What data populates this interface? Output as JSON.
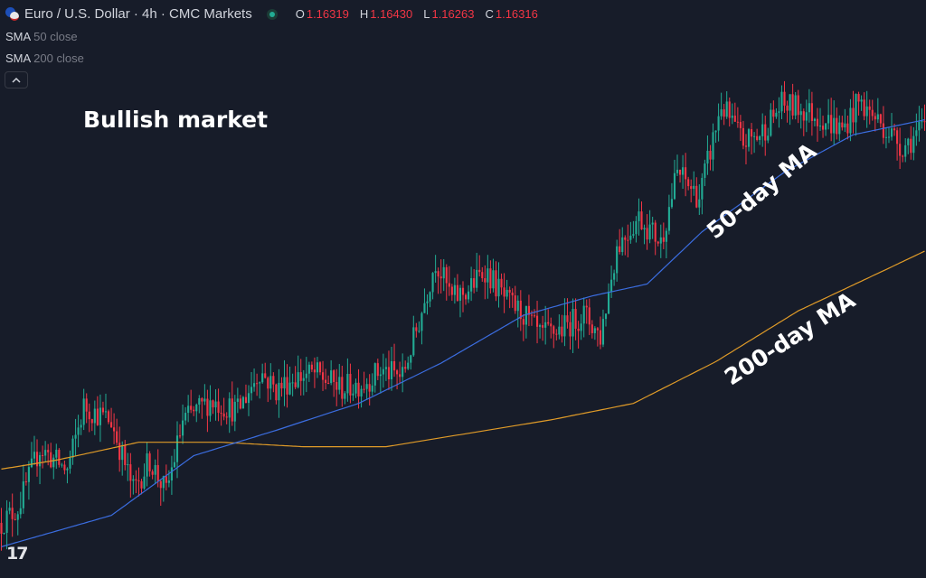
{
  "header": {
    "symbol_title": "Euro / U.S. Dollar · 4h · CMC Markets",
    "ohlc": [
      {
        "key": "O",
        "value": "1.16319"
      },
      {
        "key": "H",
        "value": "1.16430"
      },
      {
        "key": "L",
        "value": "1.16263"
      },
      {
        "key": "C",
        "value": "1.16316"
      }
    ]
  },
  "indicators": [
    {
      "name": "SMA",
      "params": "50 close",
      "color": "#3b6de0"
    },
    {
      "name": "SMA",
      "params": "200 close",
      "color": "#e09b28"
    }
  ],
  "annotations": {
    "market": "Bullish market",
    "ma50": "50-day MA",
    "ma200": "200-day MA"
  },
  "logo": "17",
  "icons": [
    "flag-icon",
    "status-dot-icon",
    "chevron-up-icon"
  ],
  "colors": {
    "background": "#171c29",
    "up_candle": "#22ab94",
    "down_candle": "#f23645",
    "sma50": "#3b6de0",
    "sma200": "#e09b28"
  },
  "chart_data": {
    "type": "candlestick",
    "title": "Euro / U.S. Dollar · 4h · CMC Markets",
    "ylim": [
      1.136,
      1.17
    ],
    "close_anchors": [
      [
        0,
        1.138
      ],
      [
        6,
        1.139
      ],
      [
        14,
        1.143
      ],
      [
        24,
        1.1415
      ],
      [
        30,
        1.1458
      ],
      [
        40,
        1.1448
      ],
      [
        48,
        1.1402
      ],
      [
        54,
        1.1422
      ],
      [
        60,
        1.14
      ],
      [
        66,
        1.1448
      ],
      [
        76,
        1.1462
      ],
      [
        86,
        1.1455
      ],
      [
        94,
        1.1482
      ],
      [
        100,
        1.1469
      ],
      [
        106,
        1.1477
      ],
      [
        114,
        1.148
      ],
      [
        124,
        1.147
      ],
      [
        132,
        1.1474
      ],
      [
        138,
        1.1482
      ],
      [
        146,
        1.1478
      ],
      [
        152,
        1.1515
      ],
      [
        158,
        1.1556
      ],
      [
        164,
        1.153
      ],
      [
        170,
        1.1536
      ],
      [
        176,
        1.155
      ],
      [
        184,
        1.1528
      ],
      [
        190,
        1.152
      ],
      [
        196,
        1.1505
      ],
      [
        204,
        1.151
      ],
      [
        212,
        1.152
      ],
      [
        218,
        1.1505
      ],
      [
        224,
        1.1565
      ],
      [
        232,
        1.1585
      ],
      [
        240,
        1.1568
      ],
      [
        246,
        1.1615
      ],
      [
        254,
        1.1598
      ],
      [
        262,
        1.166
      ],
      [
        270,
        1.1635
      ],
      [
        276,
        1.164
      ],
      [
        284,
        1.166
      ],
      [
        290,
        1.1658
      ],
      [
        298,
        1.1652
      ],
      [
        306,
        1.1643
      ],
      [
        312,
        1.1662
      ],
      [
        320,
        1.1648
      ],
      [
        328,
        1.1632
      ],
      [
        336,
        1.1645
      ]
    ],
    "sma50": [
      [
        0,
        1.1364
      ],
      [
        40,
        1.1385
      ],
      [
        70,
        1.1425
      ],
      [
        100,
        1.1442
      ],
      [
        130,
        1.146
      ],
      [
        160,
        1.1487
      ],
      [
        190,
        1.1519
      ],
      [
        215,
        1.1532
      ],
      [
        235,
        1.154
      ],
      [
        255,
        1.1575
      ],
      [
        285,
        1.1615
      ],
      [
        310,
        1.164
      ],
      [
        336,
        1.165
      ]
    ],
    "sma200": [
      [
        0,
        1.1416
      ],
      [
        20,
        1.1422
      ],
      [
        50,
        1.1434
      ],
      [
        80,
        1.1434
      ],
      [
        110,
        1.1431
      ],
      [
        140,
        1.1431
      ],
      [
        170,
        1.144
      ],
      [
        200,
        1.1449
      ],
      [
        230,
        1.146
      ],
      [
        260,
        1.1488
      ],
      [
        290,
        1.1522
      ],
      [
        320,
        1.1548
      ],
      [
        336,
        1.1562
      ]
    ]
  }
}
